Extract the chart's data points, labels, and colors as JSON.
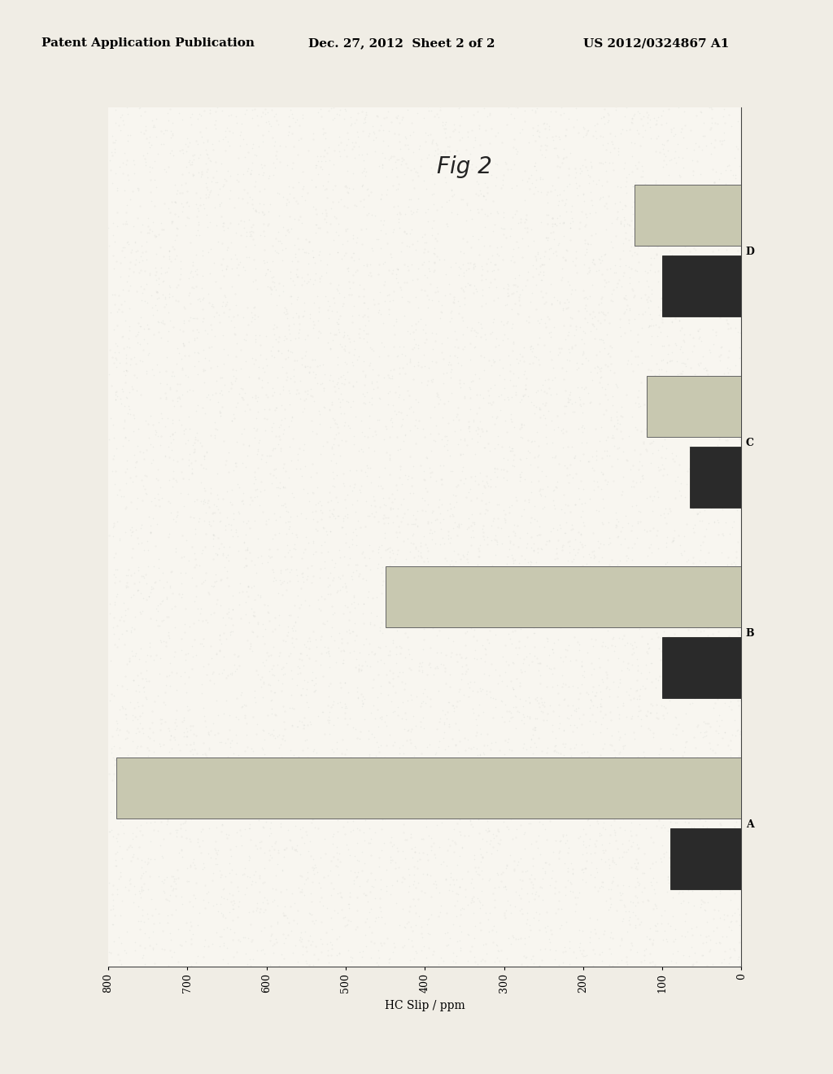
{
  "title": "Fig 2",
  "xlabel": "HC Slip / ppm",
  "categories": [
    "A",
    "B",
    "C",
    "D"
  ],
  "light_bars": [
    790,
    450,
    120,
    135
  ],
  "dark_bars": [
    90,
    100,
    65,
    100
  ],
  "light_color": "#c8c8b0",
  "dark_color": "#2a2a2a",
  "plot_bg": "#f5f2ec",
  "page_bg": "#f0ede5",
  "outer_bg": "#e8e4dc",
  "xlim_min": 0,
  "xlim_max": 800,
  "xticks": [
    0,
    100,
    200,
    300,
    400,
    500,
    600,
    700,
    800
  ],
  "bar_height": 0.32,
  "bar_gap": 0.05,
  "figsize": [
    10.24,
    13.2
  ],
  "header_text": "Patent Application Publication",
  "header_date": "Dec. 27, 2012  Sheet 2 of 2",
  "header_id": "US 2012/0324867 A1"
}
